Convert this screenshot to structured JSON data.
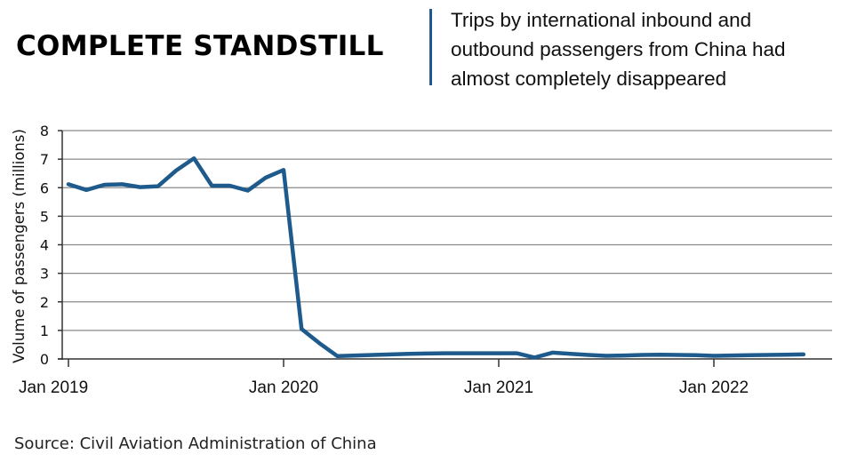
{
  "header": {
    "headline": "COMPLETE STANDSTILL",
    "subtitle": "Trips by international inbound and outbound passengers from China had almost completely disappeared"
  },
  "footer": {
    "source": "Source: Civil Aviation Administration of China"
  },
  "colors": {
    "line": "#1e5b8c",
    "divider": "#1e5b8c",
    "grid": "#8a8a8a"
  },
  "chart_data": {
    "type": "line",
    "title": "",
    "xlabel": "",
    "ylabel": "Volume of passengers (millions)",
    "ylim": [
      0,
      8
    ],
    "yticks": [
      0,
      1,
      2,
      3,
      4,
      5,
      6,
      7,
      8
    ],
    "xtick_labels": [
      "Jan 2019",
      "Jan 2020",
      "Jan 2021",
      "Jan 2022"
    ],
    "xtick_dates": [
      "2019-01",
      "2020-01",
      "2021-01",
      "2022-01"
    ],
    "grid": true,
    "legend": "none",
    "series": [
      {
        "x": [
          "2019-01",
          "2019-02",
          "2019-03",
          "2019-04",
          "2019-05",
          "2019-06",
          "2019-07",
          "2019-08",
          "2019-09",
          "2019-10",
          "2019-11",
          "2019-12",
          "2020-01",
          "2020-02",
          "2020-03",
          "2020-04",
          "2020-05",
          "2020-06",
          "2020-07",
          "2020-08",
          "2020-09",
          "2020-10",
          "2020-11",
          "2020-12",
          "2021-01",
          "2021-02",
          "2021-03",
          "2021-04",
          "2021-05",
          "2021-06",
          "2021-07",
          "2021-08",
          "2021-09",
          "2021-10",
          "2021-11",
          "2021-12",
          "2022-01",
          "2022-02",
          "2022-03",
          "2022-04",
          "2022-05",
          "2022-06"
        ],
        "values": [
          6.12,
          5.92,
          6.1,
          6.12,
          6.02,
          6.05,
          6.6,
          7.03,
          6.07,
          6.07,
          5.9,
          6.35,
          6.62,
          1.05,
          0.55,
          0.1,
          0.12,
          0.14,
          0.16,
          0.18,
          0.19,
          0.2,
          0.2,
          0.2,
          0.2,
          0.2,
          0.05,
          0.22,
          0.18,
          0.14,
          0.11,
          0.12,
          0.14,
          0.15,
          0.14,
          0.13,
          0.11,
          0.12,
          0.13,
          0.14,
          0.15,
          0.16
        ]
      }
    ]
  }
}
